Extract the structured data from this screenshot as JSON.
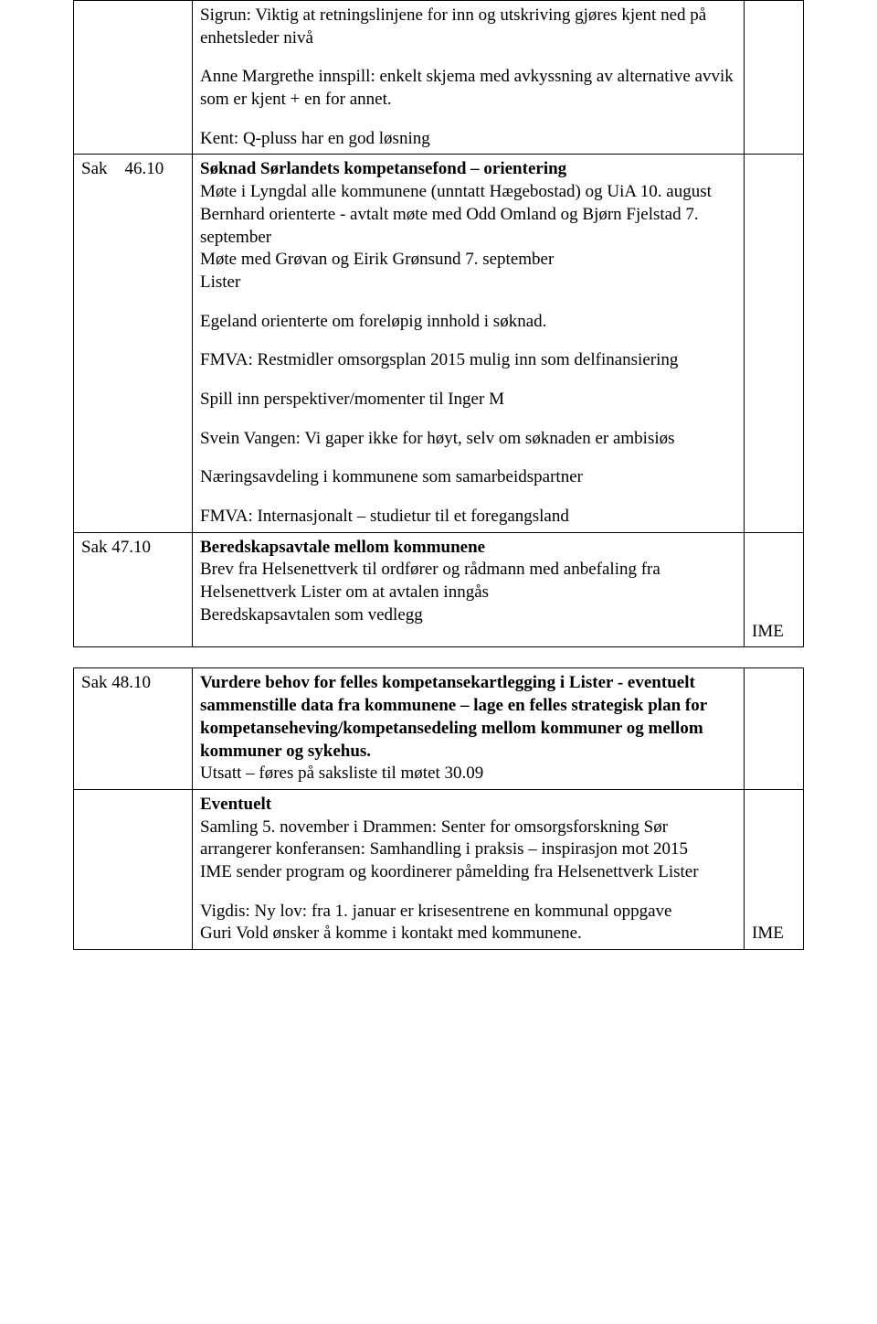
{
  "rows": [
    {
      "left": "",
      "right": "",
      "paras": [
        {
          "text": "Sigrun: Viktig at retningslinjene for inn og utskriving gjøres kjent ned på enhetsleder nivå"
        },
        {
          "text": "Anne Margrethe innspill: enkelt skjema med avkyssning av alternative avvik som er kjent + en for annet."
        },
        {
          "text": "Kent: Q-pluss har en god løsning",
          "last": true
        }
      ]
    },
    {
      "left": "Sak    46.10",
      "right": "",
      "paras": [
        {
          "bold_lead": "Søknad Sørlandets kompetansefond – orientering",
          "rest": "Møte i Lyngdal alle kommunene (unntatt Hægebostad) og UiA 10. august\nBernhard orienterte - avtalt møte med Odd Omland og Bjørn Fjelstad 7. september\nMøte med Grøvan og Eirik Grønsund 7. september\nLister"
        },
        {
          "text": "Egeland orienterte om foreløpig innhold i søknad."
        },
        {
          "text": "FMVA: Restmidler omsorgsplan 2015 mulig inn som delfinansiering"
        },
        {
          "text": "Spill inn perspektiver/momenter til Inger M"
        },
        {
          "text": "Svein Vangen: Vi gaper ikke for høyt, selv om søknaden er ambisiøs"
        },
        {
          "text": "Næringsavdeling i kommunene som samarbeidspartner"
        },
        {
          "text": "FMVA: Internasjonalt – studietur til et foregangsland",
          "last": true
        }
      ]
    },
    {
      "left": "Sak 47.10",
      "right": "IME",
      "paras": [
        {
          "bold_lead": "Beredskapsavtale mellom kommunene",
          "rest": "Brev fra Helsenettverk til ordfører og rådmann med anbefaling fra Helsenettverk Lister om at avtalen inngås\nBeredskapsavtalen som vedlegg"
        },
        {
          "text": "",
          "last": true
        }
      ]
    }
  ],
  "rows2": [
    {
      "left": "Sak 48.10",
      "right": "",
      "paras": [
        {
          "bold_lead": "Vurdere behov for felles kompetansekartlegging i Lister - eventuelt sammenstille data fra kommunene – lage en felles strategisk plan for kompetanseheving/kompetansedeling mellom kommuner og mellom kommuner og sykehus.",
          "rest": "Utsatt – føres på saksliste til møtet 30.09",
          "last": true
        }
      ]
    },
    {
      "left": "",
      "right": "IME",
      "paras": [
        {
          "bold_lead": "Eventuelt",
          "rest": "Samling 5. november i Drammen: Senter for omsorgsforskning Sør arrangerer konferansen: Samhandling i praksis – inspirasjon mot 2015\nIME sender program og koordinerer påmelding fra Helsenettverk Lister"
        },
        {
          "text": "Vigdis: Ny lov:  fra 1. januar er krisesentrene en kommunal oppgave\nGuri Vold ønsker å komme i kontakt med kommunene.",
          "last": true
        }
      ]
    }
  ]
}
